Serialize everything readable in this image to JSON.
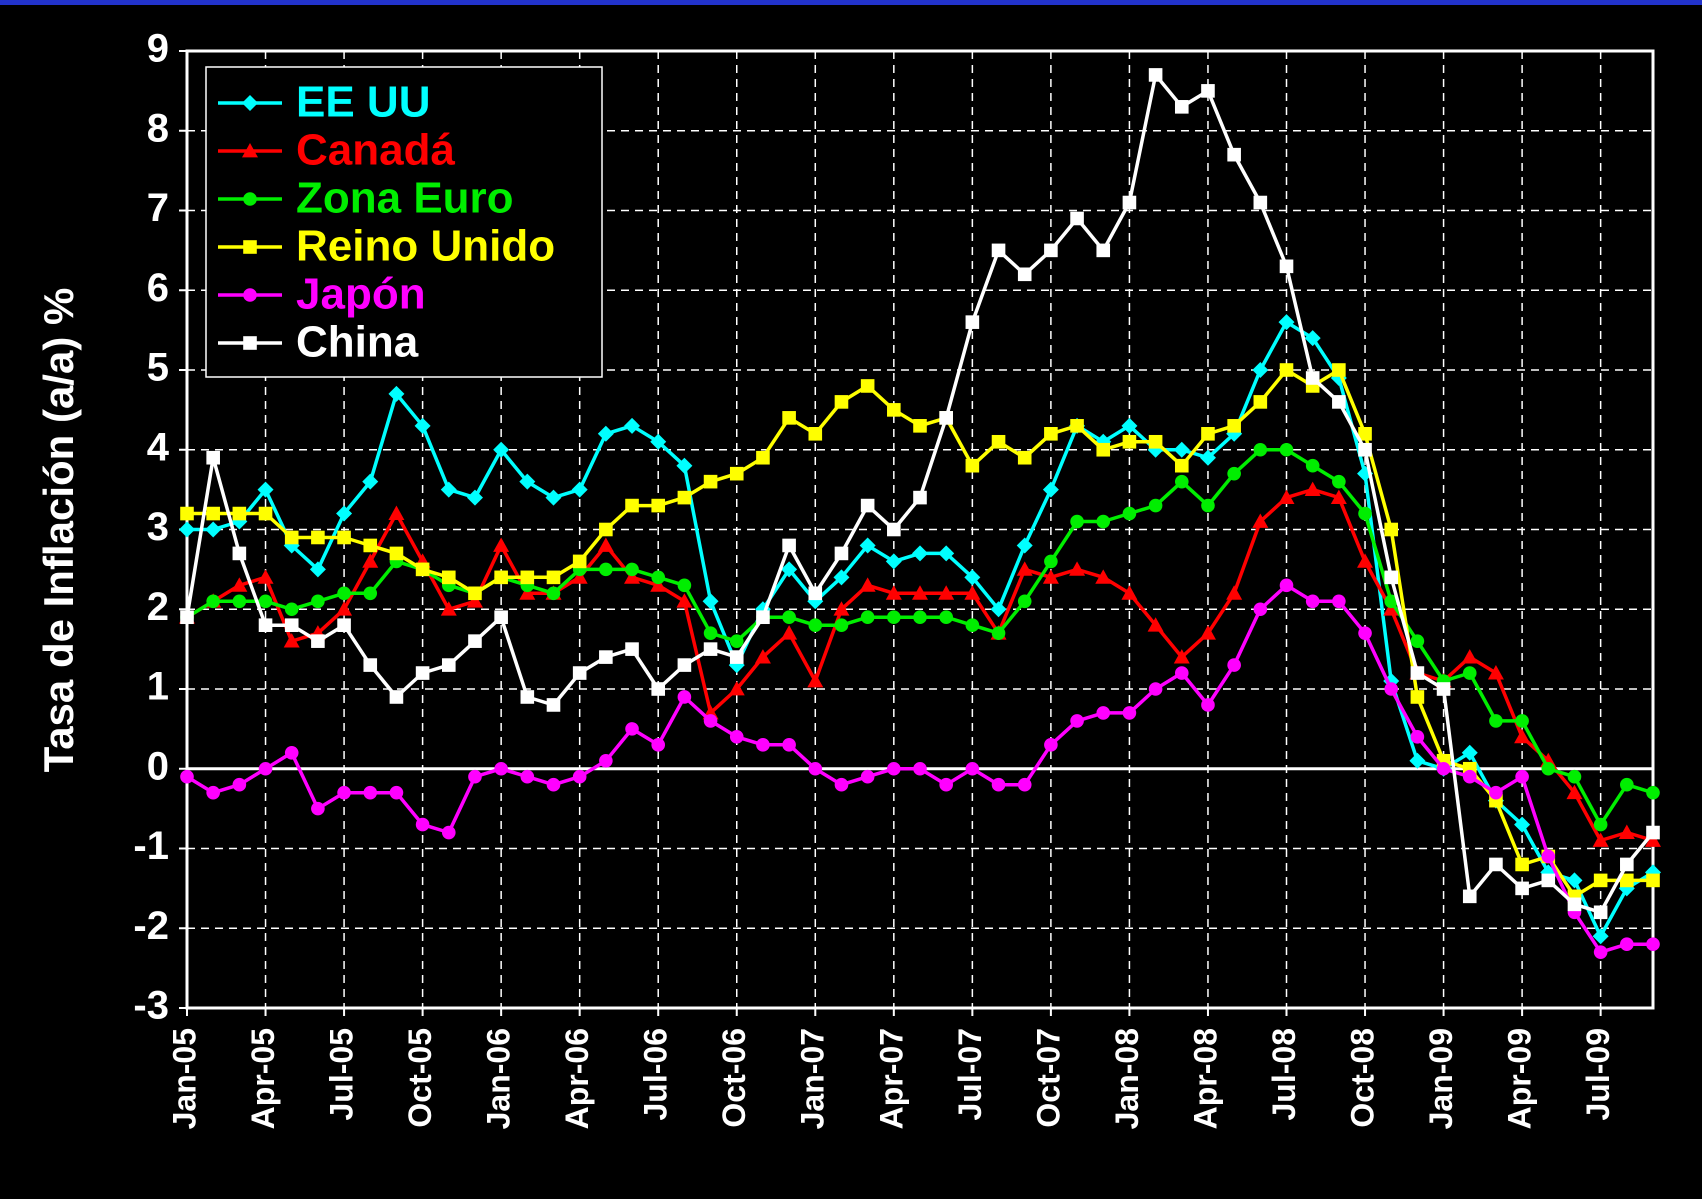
{
  "chart_data": {
    "type": "line",
    "ylabel": "Tasa de Inflación (a/a) %",
    "categories": [
      "Jan-05",
      null,
      null,
      "Apr-05",
      null,
      null,
      "Jul-05",
      null,
      null,
      "Oct-05",
      null,
      null,
      "Jan-06",
      null,
      null,
      "Apr-06",
      null,
      null,
      "Jul-06",
      null,
      null,
      "Oct-06",
      null,
      null,
      "Jan-07",
      null,
      null,
      "Apr-07",
      null,
      null,
      "Jul-07",
      null,
      null,
      "Oct-07",
      null,
      null,
      "Jan-08",
      null,
      null,
      "Apr-08",
      null,
      null,
      "Jul-08",
      null,
      null,
      "Oct-08",
      null,
      null,
      "Jan-09",
      null,
      null,
      "Apr-09",
      null,
      null,
      "Jul-09",
      null,
      null
    ],
    "ylim": [
      -3,
      9
    ],
    "yticks": [
      -3,
      -2,
      -1,
      0,
      1,
      2,
      3,
      4,
      5,
      6,
      7,
      8,
      9
    ],
    "grid": true,
    "legend": "upper left",
    "series": [
      {
        "name": "EE UU",
        "color": "#00ffff",
        "marker": "diamond",
        "values": [
          3.0,
          3.0,
          3.1,
          3.5,
          2.8,
          2.5,
          3.2,
          3.6,
          4.7,
          4.3,
          3.5,
          3.4,
          4.0,
          3.6,
          3.4,
          3.5,
          4.2,
          4.3,
          4.1,
          3.8,
          2.1,
          1.3,
          2.0,
          2.5,
          2.1,
          2.4,
          2.8,
          2.6,
          2.7,
          2.7,
          2.4,
          2.0,
          2.8,
          3.5,
          4.3,
          4.1,
          4.3,
          4.0,
          4.0,
          3.9,
          4.2,
          5.0,
          5.6,
          5.4,
          4.9,
          3.7,
          1.1,
          0.1,
          0.0,
          0.2,
          -0.4,
          -0.7,
          -1.3,
          -1.4,
          -2.1,
          -1.5,
          -1.3
        ]
      },
      {
        "name": "Canadá",
        "color": "#ff0000",
        "marker": "triangle",
        "values": [
          1.9,
          2.1,
          2.3,
          2.4,
          1.6,
          1.7,
          2.0,
          2.6,
          3.2,
          2.6,
          2.0,
          2.1,
          2.8,
          2.2,
          2.2,
          2.4,
          2.8,
          2.4,
          2.3,
          2.1,
          0.7,
          1.0,
          1.4,
          1.7,
          1.1,
          2.0,
          2.3,
          2.2,
          2.2,
          2.2,
          2.2,
          1.7,
          2.5,
          2.4,
          2.5,
          2.4,
          2.2,
          1.8,
          1.4,
          1.7,
          2.2,
          3.1,
          3.4,
          3.5,
          3.4,
          2.6,
          2.0,
          1.2,
          1.1,
          1.4,
          1.2,
          0.4,
          0.1,
          -0.3,
          -0.9,
          -0.8,
          -0.9
        ]
      },
      {
        "name": "Zona Euro",
        "color": "#00ee00",
        "marker": "circle",
        "values": [
          1.9,
          2.1,
          2.1,
          2.1,
          2.0,
          2.1,
          2.2,
          2.2,
          2.6,
          2.5,
          2.3,
          2.2,
          2.4,
          2.3,
          2.2,
          2.5,
          2.5,
          2.5,
          2.4,
          2.3,
          1.7,
          1.6,
          1.9,
          1.9,
          1.8,
          1.8,
          1.9,
          1.9,
          1.9,
          1.9,
          1.8,
          1.7,
          2.1,
          2.6,
          3.1,
          3.1,
          3.2,
          3.3,
          3.6,
          3.3,
          3.7,
          4.0,
          4.0,
          3.8,
          3.6,
          3.2,
          2.1,
          1.6,
          1.1,
          1.2,
          0.6,
          0.6,
          0.0,
          -0.1,
          -0.7,
          -0.2,
          -0.3
        ]
      },
      {
        "name": "Reino Unido",
        "color": "#ffff00",
        "marker": "square",
        "values": [
          3.2,
          3.2,
          3.2,
          3.2,
          2.9,
          2.9,
          2.9,
          2.8,
          2.7,
          2.5,
          2.4,
          2.2,
          2.4,
          2.4,
          2.4,
          2.6,
          3.0,
          3.3,
          3.3,
          3.4,
          3.6,
          3.7,
          3.9,
          4.4,
          4.2,
          4.6,
          4.8,
          4.5,
          4.3,
          4.4,
          3.8,
          4.1,
          3.9,
          4.2,
          4.3,
          4.0,
          4.1,
          4.1,
          3.8,
          4.2,
          4.3,
          4.6,
          5.0,
          4.8,
          5.0,
          4.2,
          3.0,
          0.9,
          0.1,
          0.0,
          -0.4,
          -1.2,
          -1.1,
          -1.6,
          -1.4,
          -1.4,
          -1.4
        ]
      },
      {
        "name": "Japón",
        "color": "#ff00ff",
        "marker": "circle",
        "values": [
          -0.1,
          -0.3,
          -0.2,
          0.0,
          0.2,
          -0.5,
          -0.3,
          -0.3,
          -0.3,
          -0.7,
          -0.8,
          -0.1,
          0.0,
          -0.1,
          -0.2,
          -0.1,
          0.1,
          0.5,
          0.3,
          0.9,
          0.6,
          0.4,
          0.3,
          0.3,
          0.0,
          -0.2,
          -0.1,
          0.0,
          0.0,
          -0.2,
          0.0,
          -0.2,
          -0.2,
          0.3,
          0.6,
          0.7,
          0.7,
          1.0,
          1.2,
          0.8,
          1.3,
          2.0,
          2.3,
          2.1,
          2.1,
          1.7,
          1.0,
          0.4,
          0.0,
          -0.1,
          -0.3,
          -0.1,
          -1.1,
          -1.8,
          -2.3,
          -2.2,
          -2.2
        ]
      },
      {
        "name": "China",
        "color": "#ffffff",
        "marker": "square",
        "values": [
          1.9,
          3.9,
          2.7,
          1.8,
          1.8,
          1.6,
          1.8,
          1.3,
          0.9,
          1.2,
          1.3,
          1.6,
          1.9,
          0.9,
          0.8,
          1.2,
          1.4,
          1.5,
          1.0,
          1.3,
          1.5,
          1.4,
          1.9,
          2.8,
          2.2,
          2.7,
          3.3,
          3.0,
          3.4,
          4.4,
          5.6,
          6.5,
          6.2,
          6.5,
          6.9,
          6.5,
          7.1,
          8.7,
          8.3,
          8.5,
          7.7,
          7.1,
          6.3,
          4.9,
          4.6,
          4.0,
          2.4,
          1.2,
          1.0,
          -1.6,
          -1.2,
          -1.5,
          -1.4,
          -1.7,
          -1.8,
          -1.2,
          -0.8
        ]
      }
    ]
  }
}
